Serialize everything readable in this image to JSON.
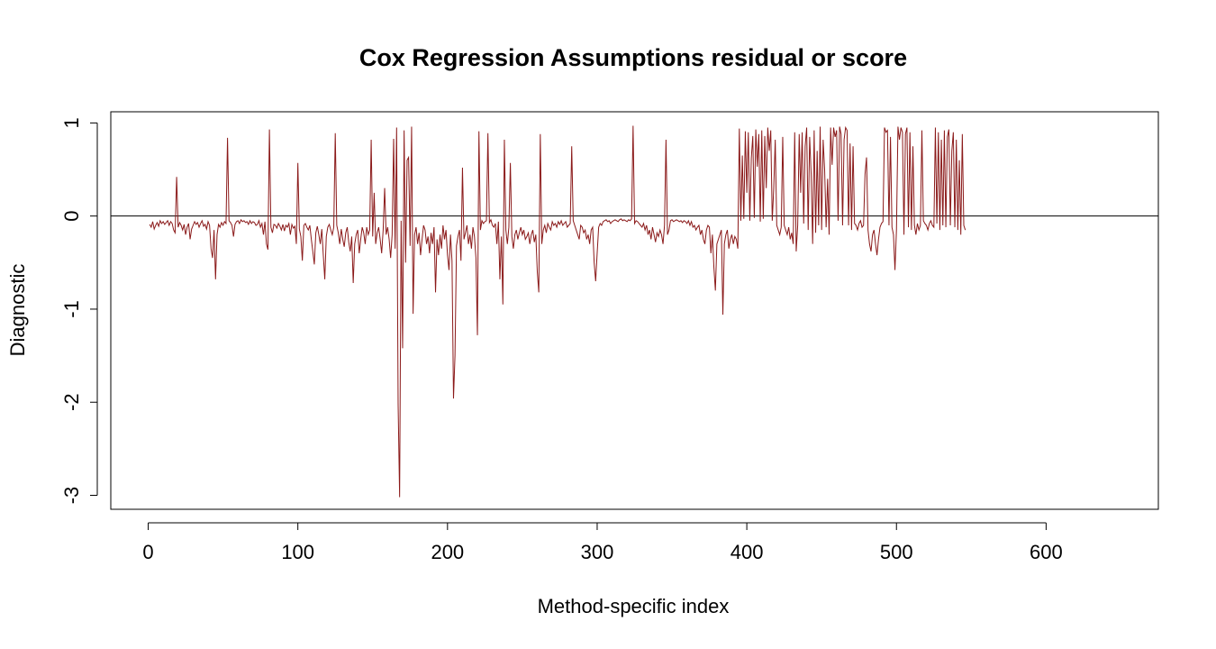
{
  "chart_data": {
    "type": "line",
    "title": "Cox Regression Assumptions residual or score",
    "xlabel": "Method-specific index",
    "ylabel": "Diagnostic",
    "xlim": [
      -25,
      675
    ],
    "ylim": [
      -3.15,
      1.12
    ],
    "x_ticks": [
      0,
      100,
      200,
      300,
      400,
      500,
      600
    ],
    "y_ticks": [
      -3,
      -2,
      -1,
      0,
      1
    ],
    "x_tick_labels": [
      "0",
      "100",
      "200",
      "300",
      "400",
      "500",
      "600"
    ],
    "y_tick_labels": [
      "-3",
      "-2",
      "-1",
      "0",
      "1"
    ],
    "reference_line_y": 0,
    "grid": false,
    "colors": {
      "series": "#8b1a1a",
      "axis": "#000000",
      "reference": "#000000"
    },
    "series": [
      {
        "x_start": 1,
        "x_step": 1,
        "values": [
          -0.09,
          -0.12,
          -0.06,
          -0.14,
          -0.1,
          -0.07,
          -0.11,
          -0.05,
          -0.08,
          -0.06,
          -0.09,
          -0.07,
          -0.05,
          -0.1,
          -0.06,
          -0.08,
          -0.15,
          -0.18,
          0.42,
          -0.12,
          -0.07,
          -0.1,
          -0.15,
          -0.09,
          -0.2,
          -0.12,
          -0.08,
          -0.25,
          -0.14,
          -0.1,
          -0.06,
          -0.09,
          -0.07,
          -0.12,
          -0.08,
          -0.05,
          -0.11,
          -0.09,
          -0.14,
          -0.06,
          -0.1,
          -0.35,
          -0.45,
          -0.15,
          -0.68,
          -0.2,
          -0.09,
          -0.12,
          -0.07,
          -0.1,
          -0.06,
          -0.08,
          0.84,
          -0.05,
          -0.07,
          -0.1,
          -0.22,
          -0.09,
          -0.06,
          -0.05,
          -0.08,
          -0.04,
          -0.06,
          -0.05,
          -0.07,
          -0.06,
          -0.09,
          -0.05,
          -0.08,
          -0.06,
          -0.07,
          -0.1,
          -0.09,
          -0.05,
          -0.12,
          -0.08,
          -0.2,
          -0.06,
          -0.3,
          -0.36,
          0.93,
          -0.12,
          -0.18,
          -0.09,
          -0.1,
          -0.13,
          -0.08,
          -0.11,
          -0.15,
          -0.09,
          -0.16,
          -0.1,
          -0.12,
          -0.08,
          -0.2,
          -0.09,
          -0.13,
          -0.11,
          -0.3,
          0.57,
          -0.14,
          -0.22,
          -0.48,
          -0.1,
          -0.08,
          -0.12,
          -0.15,
          -0.1,
          -0.25,
          -0.38,
          -0.52,
          -0.18,
          -0.11,
          -0.2,
          -0.3,
          -0.14,
          -0.42,
          -0.68,
          -0.22,
          -0.12,
          -0.09,
          -0.15,
          -0.2,
          -0.12,
          0.89,
          -0.1,
          -0.18,
          -0.3,
          -0.14,
          -0.25,
          -0.33,
          -0.18,
          -0.12,
          -0.28,
          -0.38,
          -0.22,
          -0.72,
          -0.3,
          -0.2,
          -0.15,
          -0.4,
          -0.25,
          -0.12,
          -0.18,
          -0.3,
          -0.12,
          -0.2,
          -0.15,
          0.82,
          -0.22,
          0.25,
          -0.3,
          -0.18,
          -0.12,
          -0.25,
          -0.4,
          -0.15,
          0.3,
          -0.2,
          -0.12,
          -0.25,
          -0.45,
          -0.2,
          0.83,
          -0.35,
          0.95,
          -2.02,
          -3.02,
          -0.05,
          -1.42,
          0.92,
          -0.5,
          0.6,
          0.63,
          -0.32,
          0.96,
          -1.05,
          -0.2,
          -0.12,
          -0.3,
          -0.18,
          -0.42,
          -0.25,
          -0.1,
          -0.15,
          -0.3,
          -0.22,
          -0.4,
          -0.18,
          -0.3,
          -0.12,
          -0.82,
          -0.25,
          -0.42,
          -0.2,
          -0.35,
          -0.1,
          -0.25,
          -0.15,
          -0.42,
          -0.58,
          -0.2,
          -0.48,
          -1.96,
          -1.5,
          -0.32,
          -0.22,
          -0.15,
          -0.48,
          0.52,
          -0.25,
          -0.18,
          -0.1,
          -0.3,
          -0.2,
          -0.35,
          -0.12,
          -0.22,
          -0.45,
          -1.28,
          0.91,
          -0.15,
          -0.05,
          -0.08,
          -0.06,
          -0.05,
          0.89,
          -0.07,
          -0.04,
          -0.1,
          -0.12,
          -0.08,
          -0.3,
          -0.06,
          -0.68,
          -0.22,
          -0.95,
          0.82,
          -0.15,
          -0.3,
          -0.12,
          0.57,
          -0.22,
          -0.35,
          -0.2,
          -0.15,
          -0.25,
          -0.18,
          -0.12,
          -0.2,
          -0.15,
          -0.25,
          -0.22,
          -0.18,
          -0.3,
          -0.2,
          -0.15,
          -0.28,
          -0.2,
          -0.6,
          -0.82,
          0.88,
          -0.3,
          -0.15,
          -0.1,
          -0.18,
          -0.08,
          -0.12,
          -0.15,
          -0.06,
          -0.1,
          -0.08,
          -0.12,
          -0.06,
          -0.09,
          -0.05,
          -0.1,
          -0.08,
          -0.06,
          -0.12,
          -0.1,
          -0.08,
          0.75,
          -0.05,
          -0.1,
          -0.15,
          -0.2,
          -0.25,
          -0.1,
          -0.12,
          -0.18,
          -0.15,
          -0.25,
          -0.2,
          -0.3,
          -0.15,
          -0.12,
          -0.5,
          -0.7,
          -0.4,
          -0.12,
          -0.08,
          -0.1,
          -0.06,
          -0.05,
          -0.04,
          -0.06,
          -0.05,
          -0.08,
          -0.06,
          -0.05,
          -0.04,
          -0.05,
          -0.06,
          -0.04,
          -0.03,
          -0.05,
          -0.04,
          -0.05,
          -0.06,
          -0.04,
          -0.05,
          -0.03,
          0.97,
          -0.08,
          -0.05,
          -0.06,
          -0.08,
          -0.1,
          -0.12,
          -0.08,
          -0.15,
          -0.1,
          -0.2,
          -0.15,
          -0.25,
          -0.12,
          -0.2,
          -0.28,
          -0.18,
          -0.22,
          -0.15,
          -0.2,
          -0.3,
          -0.1,
          0.82,
          -0.2,
          -0.15,
          -0.05,
          -0.04,
          -0.06,
          -0.05,
          -0.04,
          -0.05,
          -0.06,
          -0.05,
          -0.07,
          -0.05,
          -0.06,
          -0.08,
          -0.05,
          -0.1,
          -0.06,
          -0.12,
          -0.1,
          -0.15,
          -0.12,
          -0.1,
          -0.2,
          -0.15,
          -0.25,
          -0.3,
          -0.15,
          -0.1,
          -0.12,
          -0.4,
          -0.2,
          -0.55,
          -0.8,
          -0.3,
          -0.25,
          -0.2,
          -0.15,
          -1.06,
          -0.3,
          -0.2,
          -0.15,
          -0.35,
          -0.25,
          -0.2,
          -0.3,
          -0.22,
          -0.25,
          -0.35,
          0.94,
          -0.05,
          0.65,
          -0.03,
          0.91,
          0.25,
          0.9,
          -0.05,
          0.62,
          0.86,
          -0.02,
          0.93,
          0.53,
          0.88,
          -0.06,
          0.92,
          -0.03,
          0.86,
          0.3,
          0.95,
          0.7,
          0.92,
          -0.05,
          0.3,
          0.82,
          -0.1,
          -0.15,
          -0.2,
          -0.12,
          0.85,
          -0.1,
          -0.15,
          -0.2,
          -0.12,
          -0.25,
          -0.18,
          -0.3,
          0.9,
          -0.38,
          -0.1,
          0.88,
          0.25,
          0.9,
          -0.08,
          0.75,
          0.95,
          -0.15,
          0.85,
          0.45,
          -0.3,
          0.92,
          -0.18,
          0.7,
          -0.1,
          0.96,
          -0.15,
          0.82,
          0.5,
          -0.12,
          0.4,
          -0.2,
          0.95,
          0.55,
          0.95,
          0.85,
          0.92,
          -0.05,
          0.96,
          0.88,
          -0.1,
          0.82,
          0.95,
          0.92,
          -0.1,
          0.78,
          -0.15,
          0.75,
          -0.08,
          -0.1,
          -0.15,
          -0.08,
          -0.05,
          -0.12,
          -0.1,
          0.45,
          0.63,
          -0.15,
          -0.3,
          -0.38,
          -0.2,
          -0.15,
          -0.3,
          -0.42,
          -0.25,
          -0.12,
          -0.08,
          -0.06,
          0.95,
          0.9,
          0.92,
          -0.1,
          0.85,
          -0.12,
          -0.2,
          -0.58,
          -0.15,
          0.96,
          0.82,
          0.95,
          0.9,
          -0.2,
          0.88,
          0.95,
          -0.12,
          0.9,
          -0.15,
          0.75,
          -0.1,
          -0.2,
          -0.08,
          -0.15,
          -0.1,
          0.92,
          -0.05,
          -0.08,
          -0.1,
          -0.15,
          -0.08,
          -0.05,
          -0.1,
          -0.12,
          0.95,
          -0.08,
          0.9,
          -0.15,
          0.82,
          -0.1,
          0.92,
          -0.12,
          0.85,
          0.93,
          -0.1,
          0.7,
          0.9,
          -0.12,
          0.82,
          -0.15,
          0.6,
          -0.2,
          0.88,
          -0.1,
          -0.15
        ],
        "note": ""
      }
    ]
  }
}
